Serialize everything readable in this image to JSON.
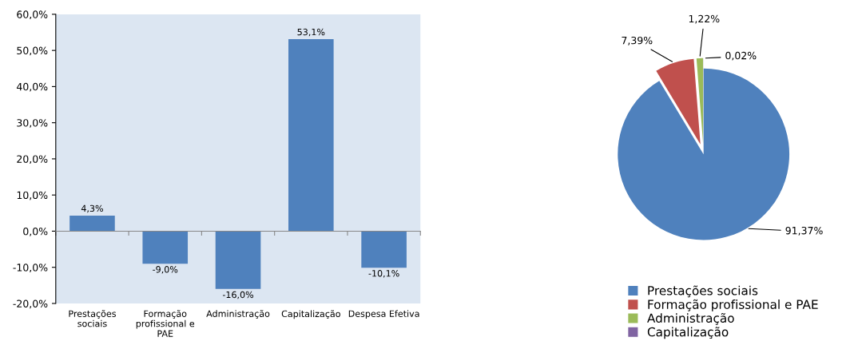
{
  "chart_data": [
    {
      "type": "bar",
      "categories": [
        "Prestações\nsociais",
        "Formação\nprofissional e\nPAE",
        "Administração",
        "Capitalização",
        "Despesa Efetiva"
      ],
      "values": [
        4.3,
        -9.0,
        -16.0,
        53.1,
        -10.1
      ],
      "value_labels": [
        "4,3%",
        "-9,0%",
        "-16,0%",
        "53,1%",
        "-10,1%"
      ],
      "color": "#4f81bd",
      "ylim": [
        -20,
        60
      ],
      "yticks": [
        {
          "value": -20,
          "label": "-20,0%"
        },
        {
          "value": -10,
          "label": "-10,0%"
        },
        {
          "value": 0,
          "label": "0,0%"
        },
        {
          "value": 10,
          "label": "10,0%"
        },
        {
          "value": 20,
          "label": "20,0%"
        },
        {
          "value": 30,
          "label": "30,0%"
        },
        {
          "value": 40,
          "label": "40,0%"
        },
        {
          "value": 50,
          "label": "50,0%"
        },
        {
          "value": 60,
          "label": "60,0%"
        }
      ]
    },
    {
      "type": "pie",
      "categories": [
        "Prestações sociais",
        "Formação profissional e PAE",
        "Administração",
        "Capitalização"
      ],
      "values": [
        91.37,
        7.39,
        1.22,
        0.02
      ],
      "value_labels": [
        "91,37%",
        "7,39%",
        "1,22%",
        "0,02%"
      ],
      "colors": [
        "#4f81bd",
        "#c0504d",
        "#9bbb59",
        "#8064a2"
      ],
      "legend": "bottom"
    }
  ]
}
